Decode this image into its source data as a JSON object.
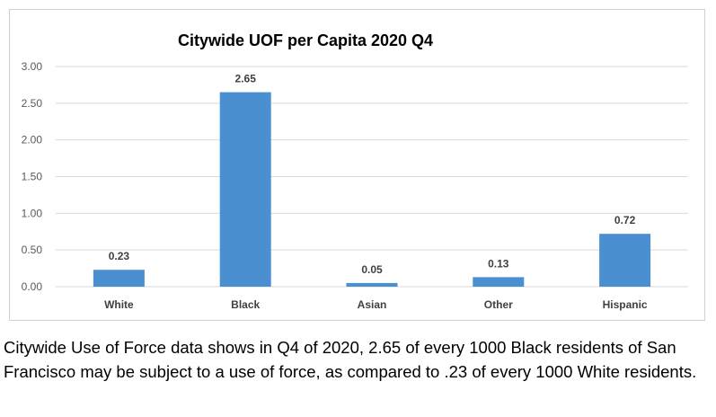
{
  "chart_data": {
    "type": "bar",
    "title": "Citywide UOF per Capita 2020 Q4",
    "xlabel": "",
    "ylabel": "",
    "categories": [
      "White",
      "Black",
      "Asian",
      "Other",
      "Hispanic"
    ],
    "values": [
      0.23,
      2.65,
      0.05,
      0.13,
      0.72
    ],
    "data_labels": [
      "0.23",
      "2.65",
      "0.05",
      "0.13",
      "0.72"
    ],
    "ylim": [
      0,
      3
    ],
    "yticks": [
      0,
      0.5,
      1,
      1.5,
      2,
      2.5,
      3
    ],
    "ytick_labels": [
      "0.00",
      "0.50",
      "1.00",
      "1.50",
      "2.00",
      "2.50",
      "3.00"
    ],
    "grid": true,
    "legend": "none",
    "bar_color": "#4a8fd0",
    "grid_color": "#d9d9d9"
  },
  "caption": "Citywide Use of Force data shows in Q4 of 2020, 2.65 of every 1000 Black residents of San Francisco may be subject to a use of force, as compared to .23 of every 1000 White residents."
}
